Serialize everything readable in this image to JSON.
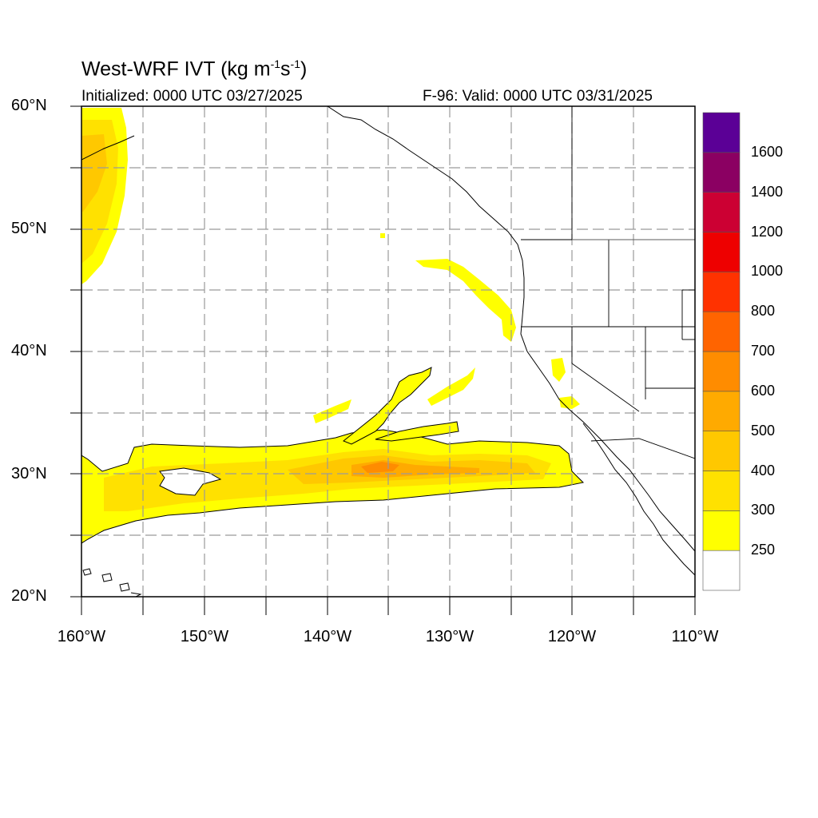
{
  "header": {
    "title_main": "West-WRF IVT (kg m",
    "title_exp1": "-1",
    "title_mid": "s",
    "title_exp2": "-1",
    "title_end": ")",
    "init": "Initialized: 0000 UTC 03/27/2025",
    "valid": "F-96: Valid: 0000 UTC 03/31/2025"
  },
  "map": {
    "lat_labels": [
      "60°N",
      "50°N",
      "40°N",
      "30°N",
      "20°N"
    ],
    "lon_labels": [
      "160°W",
      "150°W",
      "140°W",
      "130°W",
      "120°W",
      "110°W"
    ],
    "grid_color": "#9a9a9a"
  },
  "colorbar": {
    "levels": [
      "250",
      "300",
      "400",
      "500",
      "600",
      "700",
      "800",
      "1000",
      "1200",
      "1400",
      "1600"
    ],
    "colors": [
      "#ffffff",
      "#ffff00",
      "#ffe100",
      "#ffc800",
      "#ffaa00",
      "#ff8c00",
      "#ff6400",
      "#ff3200",
      "#ee0000",
      "#cc0033",
      "#8b0062",
      "#5b0096"
    ]
  }
}
